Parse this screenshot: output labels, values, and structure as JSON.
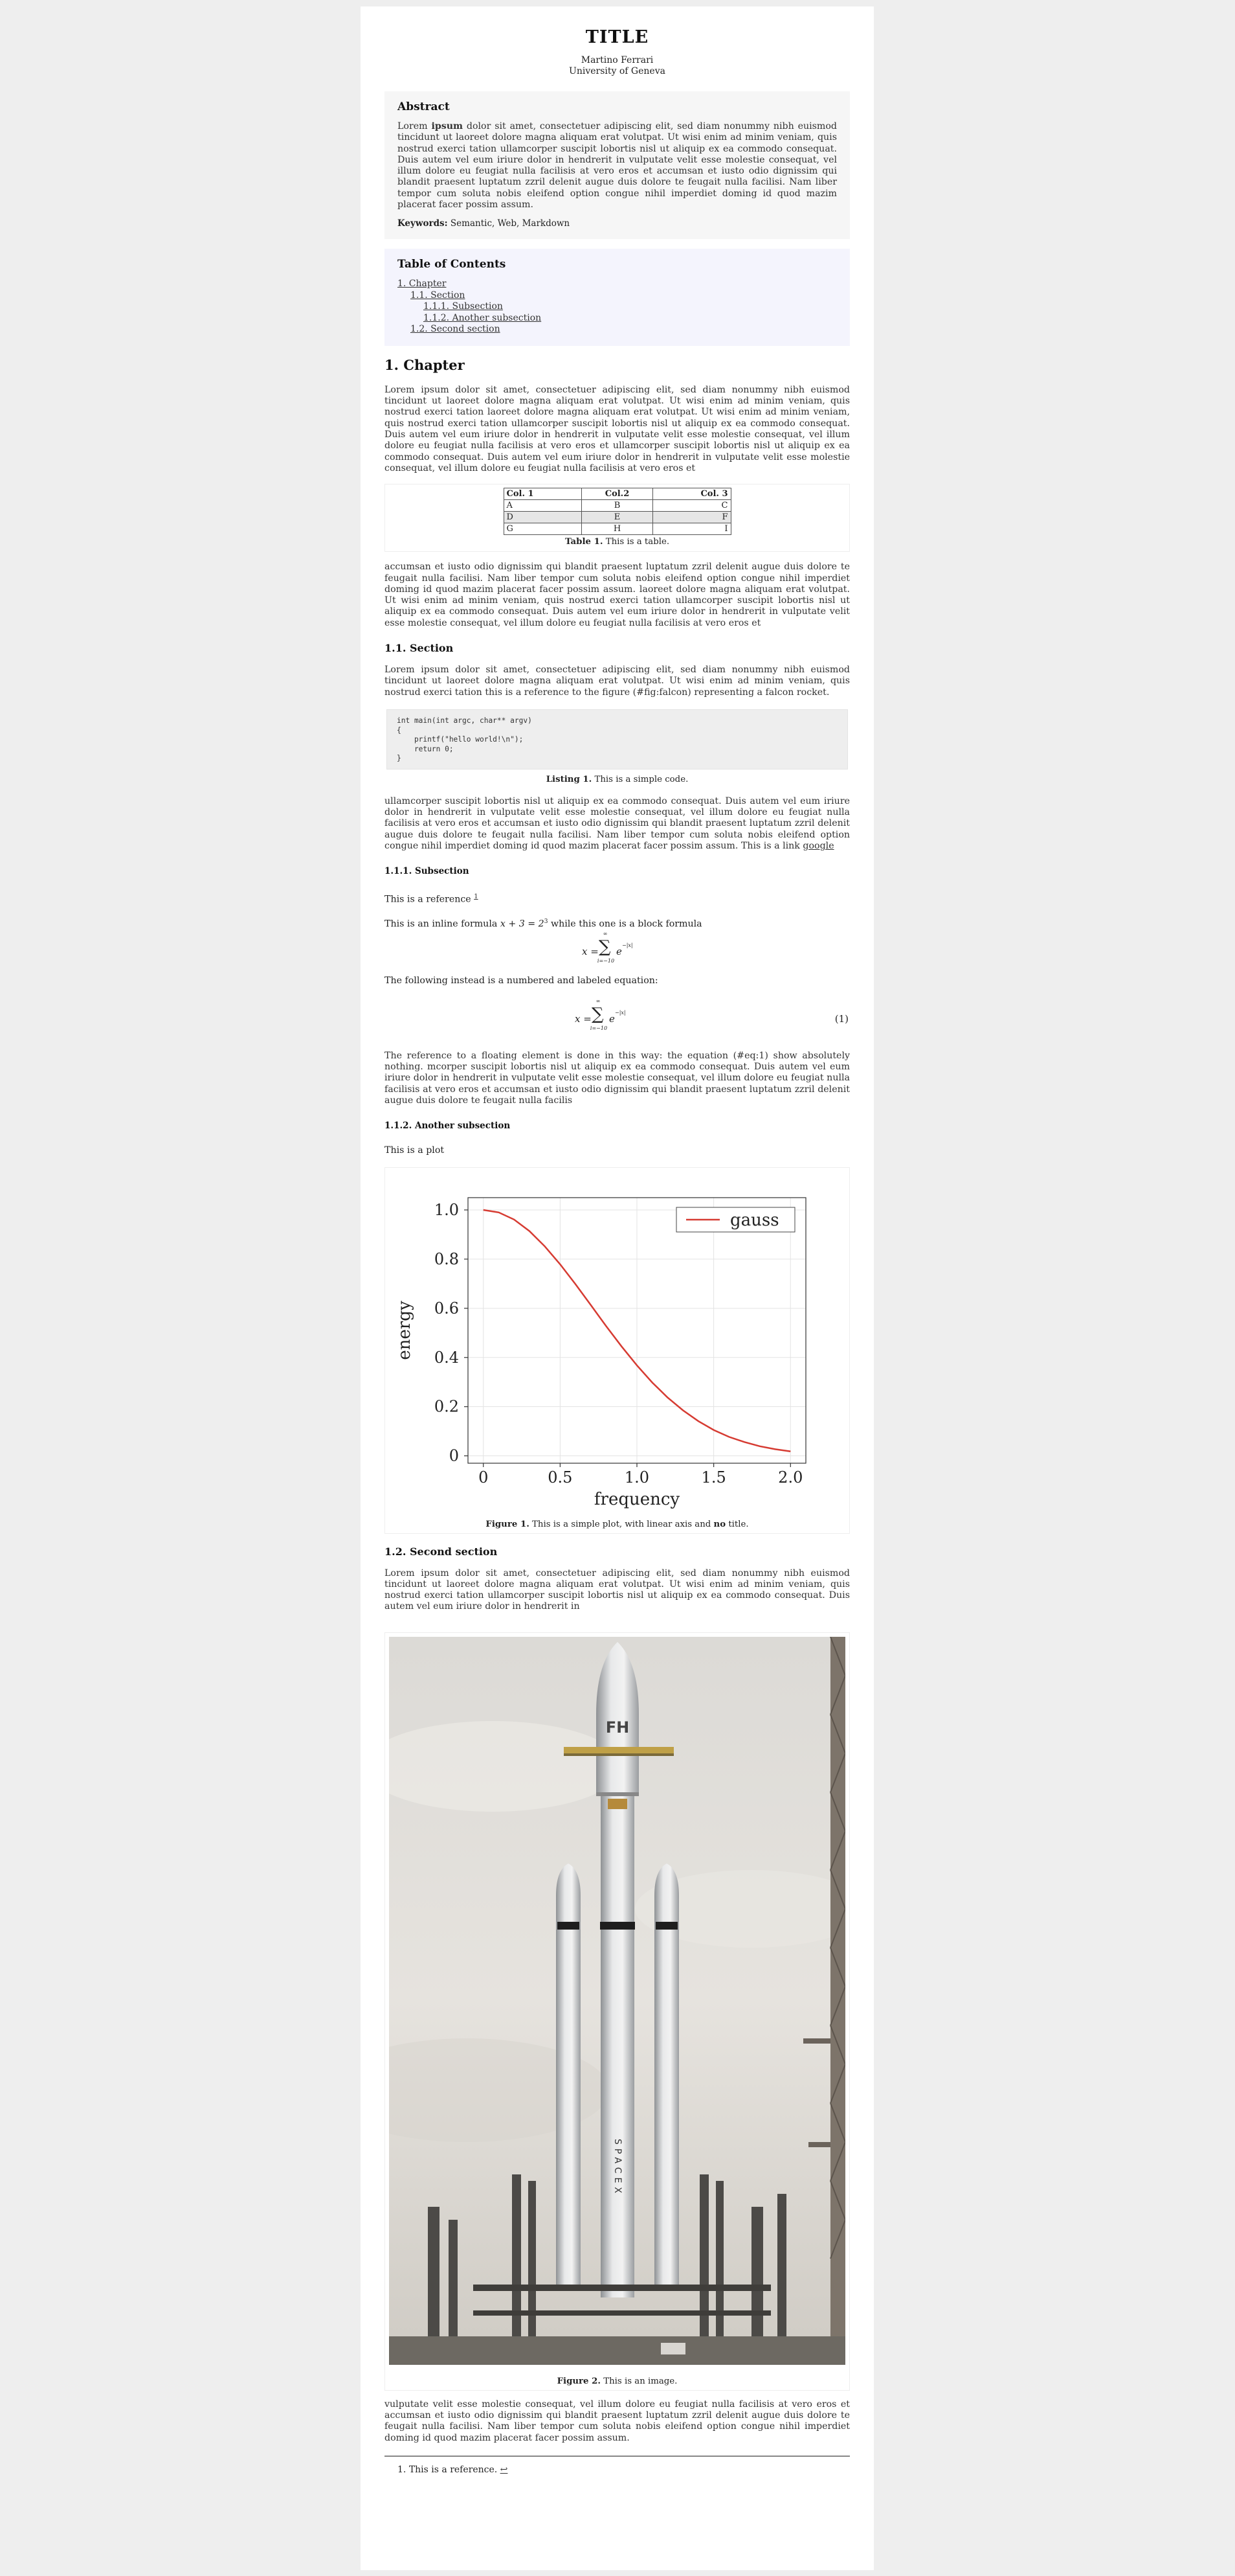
{
  "title": "TITLE",
  "author": "Martino Ferrari",
  "affiliation": "University of Geneva",
  "abstract": {
    "heading": "Abstract",
    "text_before": "Lorem ",
    "bold_word": "ipsum",
    "text_after": " dolor sit amet, consectetuer adipiscing elit, sed diam nonummy nibh euismod tincidunt ut laoreet dolore magna aliquam erat volutpat. Ut wisi enim ad minim veniam, quis nostrud exerci tation ullamcorper suscipit lobortis nisl ut aliquip ex ea commodo consequat. Duis autem vel eum iriure dolor in hendrerit in vulputate velit esse molestie consequat, vel illum dolore eu feugiat nulla facilisis at vero eros et accumsan et iusto odio dignissim qui blandit praesent luptatum zzril delenit augue duis dolore te feugait nulla facilisi. Nam liber tempor cum soluta nobis eleifend option congue nihil imperdiet doming id quod mazim placerat facer possim assum.",
    "keywords_label": "Keywords:",
    "keywords": " Semantic, Web, Markdown"
  },
  "toc": {
    "heading": "Table of Contents",
    "items": [
      "1. Chapter",
      "1.1. Section",
      "1.1.1. Subsection",
      "1.1.2. Another subsection",
      "1.2. Second section"
    ]
  },
  "chapter": {
    "heading": "1. Chapter",
    "p1": "Lorem ipsum dolor sit amet, consectetuer adipiscing elit, sed diam nonummy nibh euismod tincidunt ut laoreet dolore magna aliquam erat volutpat. Ut wisi enim ad minim veniam, quis nostrud exerci tation laoreet dolore magna aliquam erat volutpat. Ut wisi enim ad minim veniam, quis nostrud exerci tation ullamcorper suscipit lobortis nisl ut aliquip ex ea commodo consequat. Duis autem vel eum iriure dolor in hendrerit in vulputate velit esse molestie consequat, vel illum dolore eu feugiat nulla facilisis at vero eros et ullamcorper suscipit lobortis nisl ut aliquip ex ea commodo consequat. Duis autem vel eum iriure dolor in hendrerit in vulputate velit esse molestie consequat, vel illum dolore eu feugiat nulla facilisis at vero eros et",
    "p2": "accumsan et iusto odio dignissim qui blandit praesent luptatum zzril delenit augue duis dolore te feugait nulla facilisi. Nam liber tempor cum soluta nobis eleifend option congue nihil imperdiet doming id quod mazim placerat facer possim assum. laoreet dolore magna aliquam erat volutpat. Ut wisi enim ad minim veniam, quis nostrud exerci tation ullamcorper suscipit lobortis nisl ut aliquip ex ea commodo consequat. Duis autem vel eum iriure dolor in hendrerit in vulputate velit esse molestie consequat, vel illum dolore eu feugiat nulla facilisis at vero eros et"
  },
  "table": {
    "headers": [
      "Col. 1",
      "Col.2",
      "Col. 3"
    ],
    "rows": [
      [
        "A",
        "B",
        "C"
      ],
      [
        "D",
        "E",
        "F"
      ],
      [
        "G",
        "H",
        "I"
      ]
    ],
    "caption_label": "Table 1.",
    "caption_text": " This is a table."
  },
  "section": {
    "heading": "1.1. Section",
    "p1": "Lorem ipsum dolor sit amet, consectetuer adipiscing elit, sed diam nonummy nibh euismod tincidunt ut laoreet dolore magna aliquam erat volutpat. Ut wisi enim ad minim veniam, quis nostrud exerci tation this is a reference to the figure (#fig:falcon) representing a falcon rocket.",
    "code": "int main(int argc, char** argv)\n{\n    printf(\"hello world!\\n\");\n    return 0;\n}",
    "listing_label": "Listing 1.",
    "listing_text": " This is a simple code.",
    "p2_text": "ullamcorper suscipit lobortis nisl ut aliquip ex ea commodo consequat. Duis autem vel eum iriure dolor in hendrerit in vulputate velit esse molestie consequat, vel illum dolore eu feugiat nulla facilisis at vero eros et accumsan et iusto odio dignissim qui blandit praesent luptatum zzril delenit augue duis dolore te feugait nulla facilisi. Nam liber tempor cum soluta nobis eleifend option congue nihil imperdiet doming id quod mazim placerat facer possim assum. This is a link ",
    "link_text": "google"
  },
  "subsection": {
    "heading": "1.1.1. Subsection",
    "ref_text": "This is a reference ",
    "ref_mark": "1",
    "inline_before": "This is an inline formula ",
    "inline_formula": "x + 3 = 2",
    "inline_exp": "3",
    "inline_after": " while this one is a block formula",
    "numbered_intro": "The following instead is a numbered and labeled equation:",
    "eq_number": "(1)",
    "eq_lhs": "x =",
    "eq_sum_top": "∞",
    "eq_sum_bottom": "i=−10",
    "eq_term": "e",
    "eq_exp": "−|x|",
    "p_after": "The reference to a floating element is done in this way: the equation (#eq:1) show absolutely nothing. mcorper suscipit lobortis nisl ut aliquip ex ea commodo consequat. Duis autem vel eum iriure dolor in hendrerit in vulputate velit esse molestie consequat, vel illum dolore eu feugiat nulla facilisis at vero eros et accumsan et iusto odio dignissim qui blandit praesent luptatum zzril delenit augue duis dolore te feugait nulla facilis"
  },
  "subsection2": {
    "heading": "1.1.2. Another subsection",
    "intro": "This is a plot",
    "figure_label": "Figure 1.",
    "figure_text_before": " This is a simple plot, with linear axis and ",
    "figure_text_bold": "no",
    "figure_text_after": " title."
  },
  "chart_data": {
    "type": "line",
    "title": "",
    "xlabel": "frequency",
    "ylabel": "energy",
    "xlim": [
      -0.1,
      2.1
    ],
    "ylim": [
      -0.03,
      1.05
    ],
    "xticks": [
      0,
      0.5,
      1.0,
      1.5,
      2.0
    ],
    "xtick_labels": [
      "0",
      "0.5",
      "1.0",
      "1.5",
      "2.0"
    ],
    "yticks": [
      0,
      0.2,
      0.4,
      0.6,
      0.8,
      1.0
    ],
    "ytick_labels": [
      "0",
      "0.2",
      "0.4",
      "0.6",
      "0.8",
      "1.0"
    ],
    "grid": true,
    "legend_position": "top-right",
    "series": [
      {
        "name": "gauss",
        "color": "#d63b32",
        "x": [
          0,
          0.1,
          0.2,
          0.3,
          0.4,
          0.5,
          0.6,
          0.7,
          0.8,
          0.9,
          1.0,
          1.1,
          1.2,
          1.3,
          1.4,
          1.5,
          1.6,
          1.7,
          1.8,
          1.9,
          2.0
        ],
        "y": [
          1.0,
          0.99,
          0.961,
          0.914,
          0.852,
          0.779,
          0.698,
          0.613,
          0.527,
          0.445,
          0.368,
          0.298,
          0.237,
          0.185,
          0.141,
          0.105,
          0.077,
          0.056,
          0.039,
          0.027,
          0.018
        ]
      }
    ]
  },
  "second_section": {
    "heading": "1.2. Second section",
    "p1": "Lorem ipsum dolor sit amet, consectetuer adipiscing elit, sed diam nonummy nibh euismod tincidunt ut laoreet dolore magna aliquam erat volutpat. Ut wisi enim ad minim veniam, quis nostrud exerci tation ullamcorper suscipit lobortis nisl ut aliquip ex ea commodo consequat. Duis autem vel eum iriure dolor in hendrerit in",
    "image_logo": "FH",
    "image_wordmark": "SPACEX",
    "figure_label": "Figure 2.",
    "figure_text": " This is an image.",
    "p2": "vulputate velit esse molestie consequat, vel illum dolore eu feugiat nulla facilisis at vero eros et accumsan et iusto odio dignissim qui blandit praesent luptatum zzril delenit augue duis dolore te feugait nulla facilisi. Nam liber tempor cum soluta nobis eleifend option congue nihil imperdiet doming id quod mazim placerat facer possim assum."
  },
  "footnotes": {
    "items": [
      {
        "text": "This is a reference. ",
        "back": "↩"
      }
    ]
  }
}
